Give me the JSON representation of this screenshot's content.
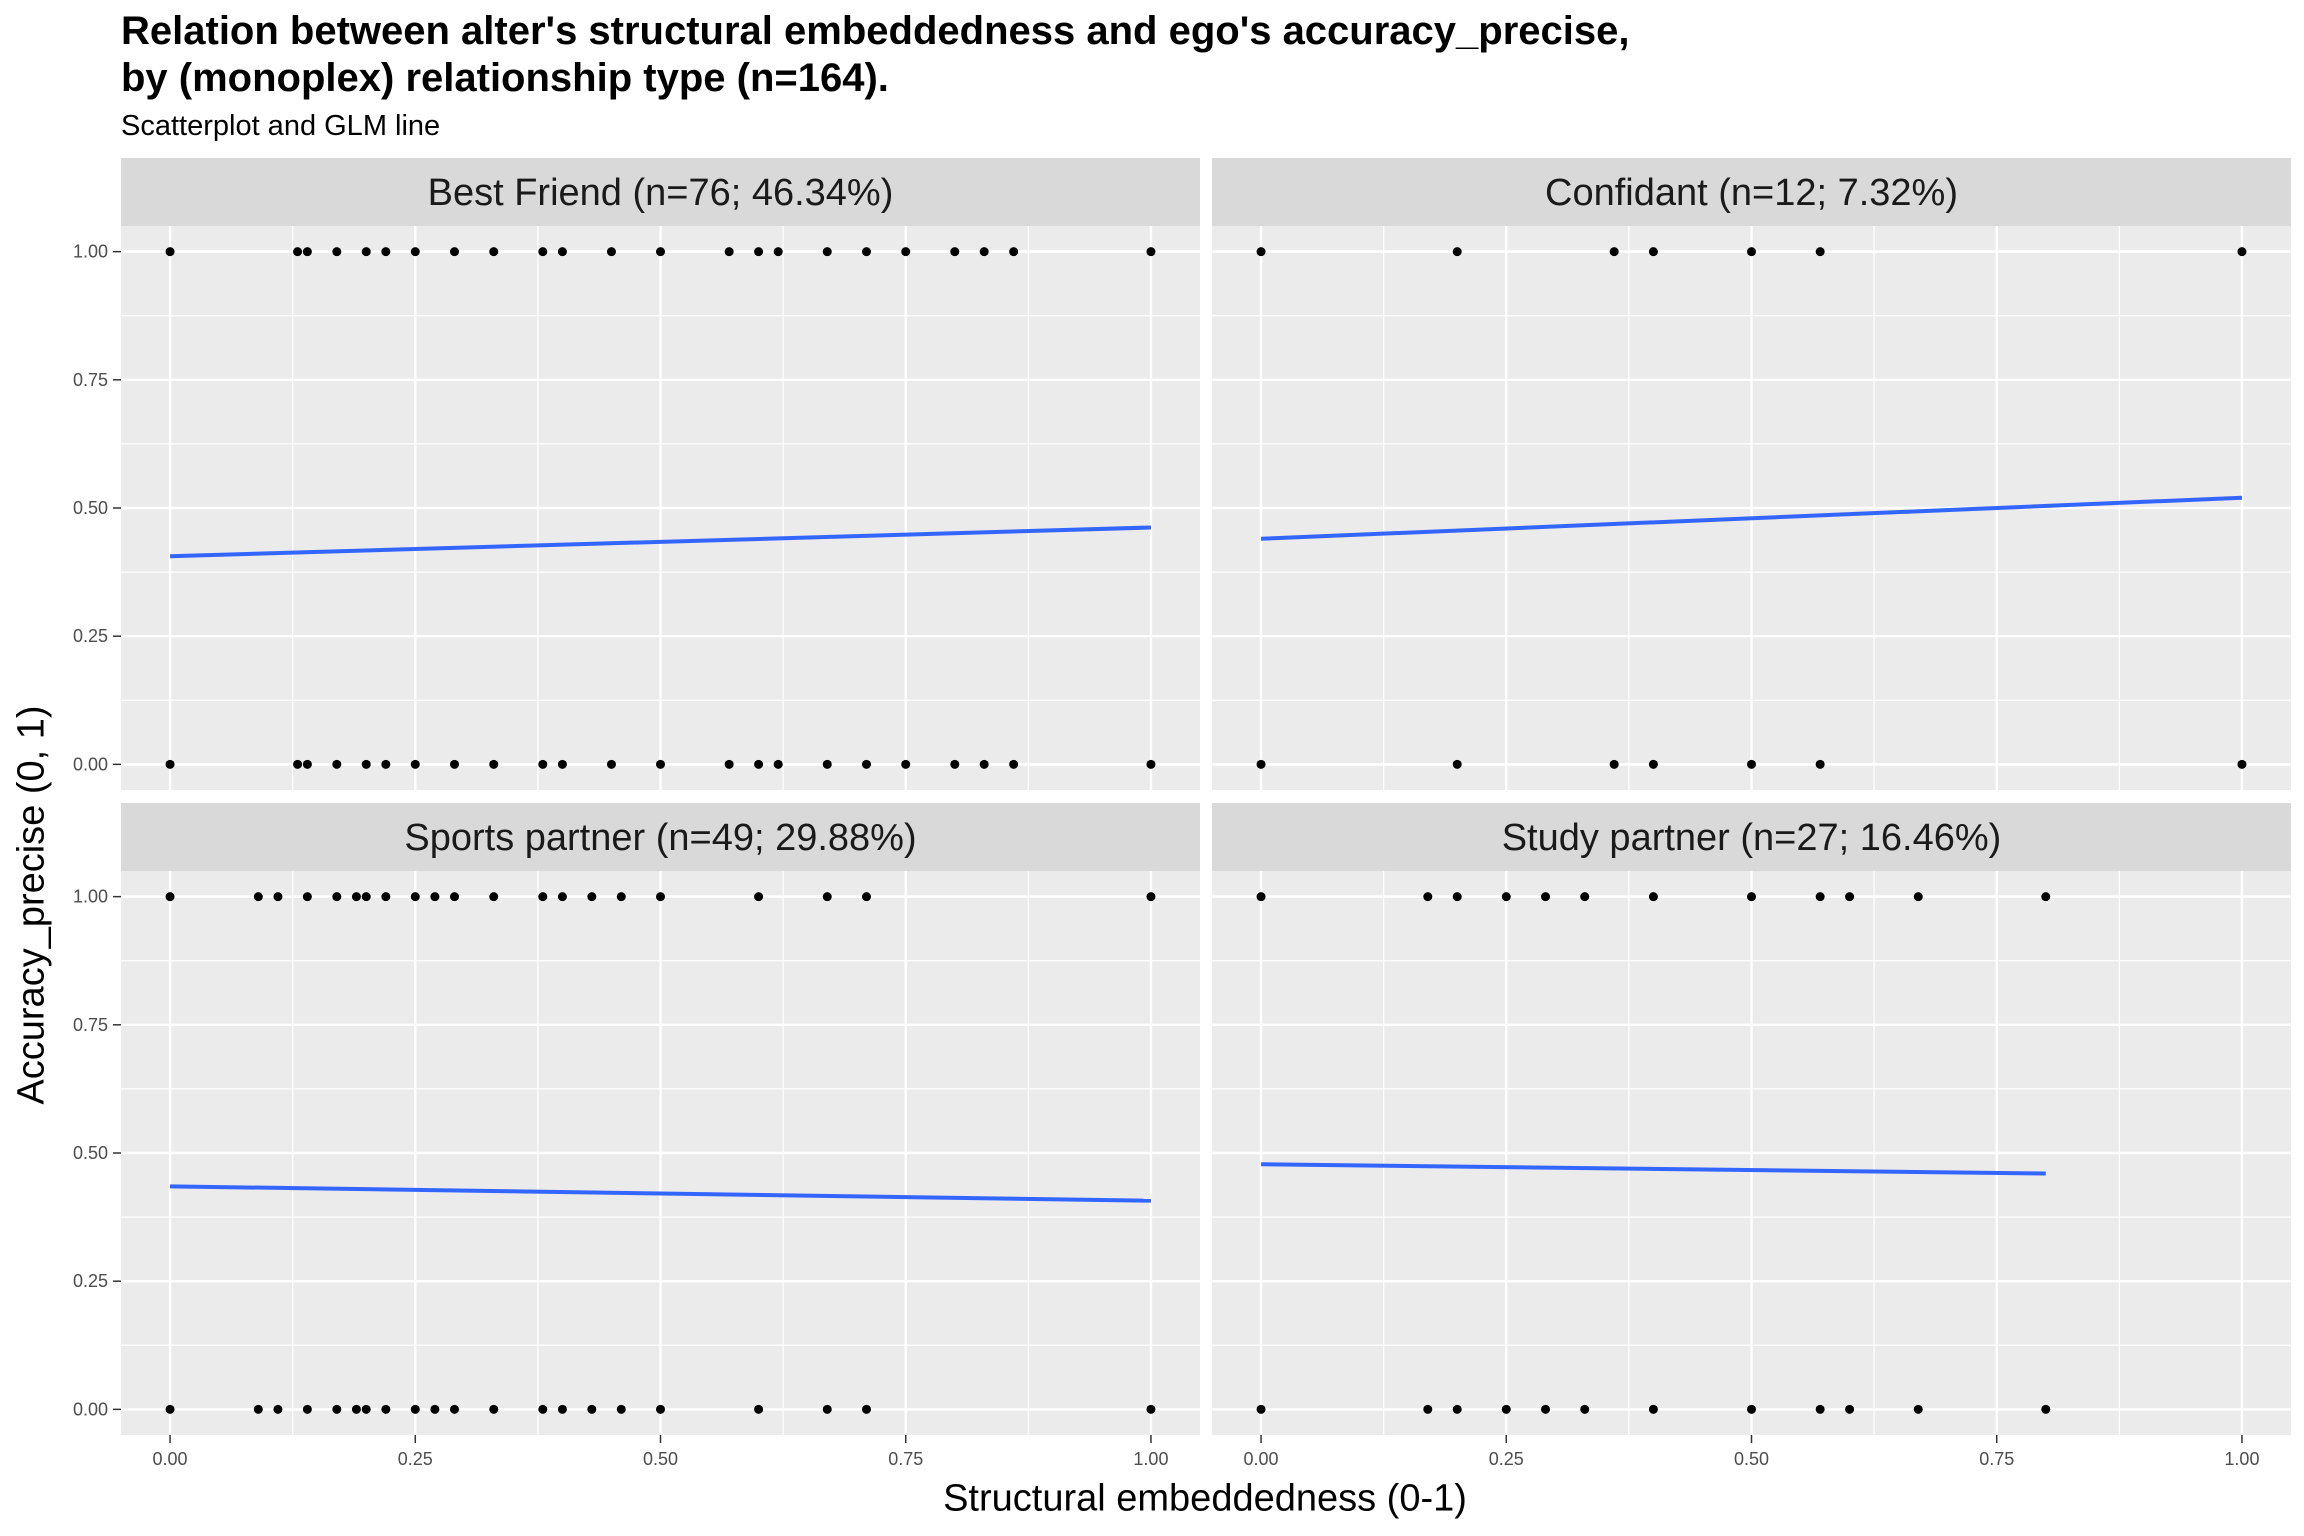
{
  "title_lines": [
    "Relation between alter's structural embeddedness and ego's accuracy_precise,",
    "by (monoplex) relationship type (n=164)."
  ],
  "subtitle": "Scatterplot and GLM line",
  "chart_data": {
    "type": "scatter",
    "facet_layout": "2x2",
    "xlabel": "Structural embeddedness (0-1)",
    "ylabel": "Accuracy_precise (0, 1)",
    "xlim": [
      -0.05,
      1.05
    ],
    "ylim": [
      -0.05,
      1.05
    ],
    "x_ticks": [
      "0.00",
      "0.25",
      "0.50",
      "0.75",
      "1.00"
    ],
    "x_tick_values": [
      0,
      0.25,
      0.5,
      0.75,
      1.0
    ],
    "y_ticks": [
      "0.00",
      "0.25",
      "0.50",
      "0.75",
      "1.00"
    ],
    "y_tick_values": [
      0,
      0.25,
      0.5,
      0.75,
      1.0
    ],
    "grid": true,
    "point_color": "#000000",
    "line_color": "#3366FF",
    "panel_background": "#EBEBEB",
    "strip_background": "#D9D9D9",
    "panels": [
      {
        "strip": "Best Friend (n=76; 46.34%)",
        "points_y1_x": [
          0,
          0.13,
          0.14,
          0.17,
          0.2,
          0.22,
          0.25,
          0.29,
          0.33,
          0.38,
          0.4,
          0.45,
          0.5,
          0.57,
          0.6,
          0.62,
          0.67,
          0.71,
          0.75,
          0.8,
          0.83,
          0.86,
          1.0
        ],
        "points_y0_x": [
          0,
          0.13,
          0.14,
          0.17,
          0.2,
          0.22,
          0.25,
          0.29,
          0.33,
          0.38,
          0.4,
          0.45,
          0.5,
          0.57,
          0.6,
          0.62,
          0.67,
          0.71,
          0.75,
          0.8,
          0.83,
          0.86,
          1.0
        ],
        "glm_line": {
          "x": [
            0,
            1.0
          ],
          "y": [
            0.406,
            0.462
          ]
        }
      },
      {
        "strip": "Confidant (n=12; 7.32%)",
        "points_y1_x": [
          0,
          0.2,
          0.36,
          0.4,
          0.5,
          0.57,
          1.0
        ],
        "points_y0_x": [
          0,
          0.2,
          0.36,
          0.4,
          0.5,
          0.57,
          1.0
        ],
        "glm_line": {
          "x": [
            0,
            1.0
          ],
          "y": [
            0.44,
            0.52
          ]
        }
      },
      {
        "strip": "Sports partner (n=49; 29.88%)",
        "points_y1_x": [
          0,
          0.09,
          0.11,
          0.14,
          0.17,
          0.19,
          0.2,
          0.22,
          0.25,
          0.27,
          0.29,
          0.33,
          0.38,
          0.4,
          0.43,
          0.46,
          0.5,
          0.6,
          0.67,
          0.71,
          1.0
        ],
        "points_y0_x": [
          0,
          0.09,
          0.11,
          0.14,
          0.17,
          0.19,
          0.2,
          0.22,
          0.25,
          0.27,
          0.29,
          0.33,
          0.38,
          0.4,
          0.43,
          0.46,
          0.5,
          0.6,
          0.67,
          0.71,
          1.0
        ],
        "glm_line": {
          "x": [
            0,
            1.0
          ],
          "y": [
            0.435,
            0.407
          ]
        }
      },
      {
        "strip": "Study partner (n=27; 16.46%)",
        "points_y1_x": [
          0,
          0.17,
          0.2,
          0.25,
          0.29,
          0.33,
          0.4,
          0.5,
          0.57,
          0.6,
          0.67,
          0.8
        ],
        "points_y0_x": [
          0,
          0.17,
          0.2,
          0.25,
          0.29,
          0.33,
          0.4,
          0.5,
          0.57,
          0.6,
          0.67,
          0.8
        ],
        "glm_line": {
          "x": [
            0,
            0.8
          ],
          "y": [
            0.478,
            0.46
          ]
        }
      }
    ]
  }
}
